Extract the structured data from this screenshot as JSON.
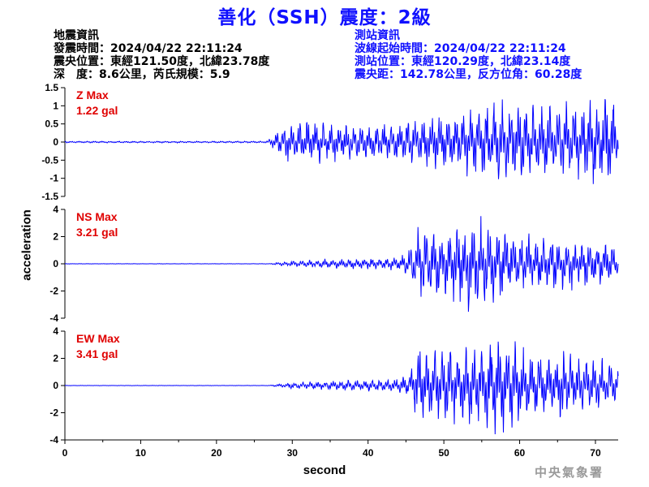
{
  "title": "善化（SSH）震度：2級",
  "earthquake_info": {
    "heading": "地震資訊",
    "time": "發震時間：2024/04/22 22:11:24",
    "epicenter": "震央位置：東經121.50度，北緯23.78度",
    "depth_magnitude": "深　度：8.6公里，芮氏規模：5.9"
  },
  "station_info": {
    "heading": "測站資訊",
    "wave_start": "波線起始時間：2024/04/22 22:11:24",
    "position": "測站位置：東經120.29度，北緯23.14度",
    "distance": "震央距：142.78公里，反方位角：60.28度"
  },
  "agency": "中央氣象署",
  "chart_data": [
    {
      "type": "line",
      "name": "Z",
      "max_label": "Z Max",
      "max_value_label": "1.22 gal",
      "ylabel": "acceleration",
      "xlabel": "second",
      "xlim": [
        0,
        73
      ],
      "ylim": [
        -1.5,
        1.5
      ],
      "yticks": [
        "1.5",
        "1",
        "0.5",
        "0",
        "-0.5",
        "-1",
        "-1.5"
      ],
      "ytick_values": [
        1.5,
        1,
        0.5,
        0,
        -0.5,
        -1,
        -1.5
      ],
      "envelope": [
        [
          0,
          0.02
        ],
        [
          26.5,
          0.02
        ],
        [
          27.5,
          0.15
        ],
        [
          28,
          0.3
        ],
        [
          29,
          0.45
        ],
        [
          32,
          0.5
        ],
        [
          35,
          0.45
        ],
        [
          38,
          0.4
        ],
        [
          41,
          0.4
        ],
        [
          44,
          0.45
        ],
        [
          47,
          0.6
        ],
        [
          50,
          0.7
        ],
        [
          53,
          0.75
        ],
        [
          56,
          0.9
        ],
        [
          57.5,
          1.1
        ],
        [
          60,
          1.0
        ],
        [
          63,
          0.9
        ],
        [
          66,
          0.9
        ],
        [
          69,
          0.95
        ],
        [
          71,
          1.1
        ],
        [
          72,
          1.2
        ],
        [
          73,
          0.5
        ]
      ],
      "color": "#0000ff"
    },
    {
      "type": "line",
      "name": "NS",
      "max_label": "NS Max",
      "max_value_label": "3.21 gal",
      "ylim": [
        -4,
        4
      ],
      "yticks": [
        "4",
        "2",
        "0",
        "-2",
        "-4"
      ],
      "ytick_values": [
        4,
        2,
        0,
        -2,
        -4
      ],
      "envelope": [
        [
          0,
          0.01
        ],
        [
          27,
          0.01
        ],
        [
          28,
          0.1
        ],
        [
          30,
          0.2
        ],
        [
          35,
          0.3
        ],
        [
          40,
          0.35
        ],
        [
          44,
          0.4
        ],
        [
          45.5,
          1.0
        ],
        [
          46.5,
          2.2
        ],
        [
          48,
          2.3
        ],
        [
          50,
          2.0
        ],
        [
          52,
          2.5
        ],
        [
          53,
          3.2
        ],
        [
          55,
          2.8
        ],
        [
          57,
          2.6
        ],
        [
          59,
          2.0
        ],
        [
          62,
          1.7
        ],
        [
          65,
          1.8
        ],
        [
          68,
          1.5
        ],
        [
          71,
          1.6
        ],
        [
          73,
          0.8
        ]
      ],
      "color": "#0000ff"
    },
    {
      "type": "line",
      "name": "EW",
      "max_label": "EW Max",
      "max_value_label": "3.41 gal",
      "ylim": [
        -4,
        4
      ],
      "yticks": [
        "4",
        "2",
        "0",
        "-2",
        "-4"
      ],
      "ytick_values": [
        4,
        2,
        0,
        -2,
        -4
      ],
      "xticks": [
        "0",
        "10",
        "20",
        "30",
        "40",
        "50",
        "60",
        "70"
      ],
      "xtick_values": [
        0,
        10,
        20,
        30,
        40,
        50,
        60,
        70
      ],
      "envelope": [
        [
          0,
          0.01
        ],
        [
          27,
          0.01
        ],
        [
          28,
          0.1
        ],
        [
          30,
          0.2
        ],
        [
          35,
          0.3
        ],
        [
          40,
          0.35
        ],
        [
          44,
          0.45
        ],
        [
          45.5,
          0.8
        ],
        [
          46.5,
          2.5
        ],
        [
          48,
          2.2
        ],
        [
          50,
          2.6
        ],
        [
          52,
          2.3
        ],
        [
          55,
          2.6
        ],
        [
          57.5,
          3.4
        ],
        [
          60,
          2.4
        ],
        [
          63,
          2.1
        ],
        [
          66,
          2.2
        ],
        [
          69,
          1.8
        ],
        [
          71,
          1.8
        ],
        [
          73,
          0.9
        ]
      ],
      "color": "#0000ff"
    }
  ]
}
